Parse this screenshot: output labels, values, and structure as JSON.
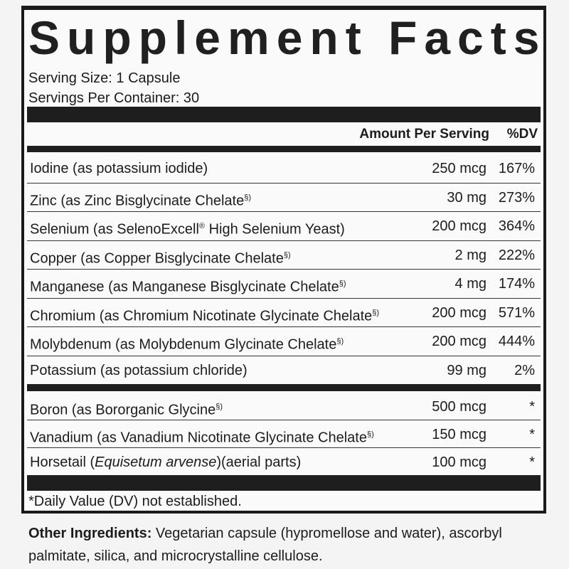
{
  "title": "Supplement Facts",
  "serving_size": "Serving Size: 1 Capsule",
  "servings_per_container": "Servings Per Container: 30",
  "header": {
    "amount": "Amount Per Serving",
    "dv": "%DV"
  },
  "group1": [
    {
      "name": "Iodine (as potassium iodide)",
      "mark": "",
      "amount": "250 mcg",
      "dv": "167%"
    },
    {
      "name": "Zinc (as Zinc Bisglycinate Chelate",
      "mark": "§)",
      "amount": "30 mg",
      "dv": "273%"
    },
    {
      "name": "Selenium (as SelenoExcell",
      "mark": "®",
      "rest": " High Selenium Yeast)",
      "amount": "200 mcg",
      "dv": "364%"
    },
    {
      "name": "Copper (as Copper Bisglycinate Chelate",
      "mark": "§)",
      "amount": "2 mg",
      "dv": "222%"
    },
    {
      "name": "Manganese (as Manganese Bisglycinate Chelate",
      "mark": "§)",
      "amount": "4 mg",
      "dv": "174%"
    },
    {
      "name": "Chromium (as Chromium Nicotinate Glycinate Chelate",
      "mark": "§)",
      "amount": "200 mcg",
      "dv": "571%"
    },
    {
      "name": "Molybdenum (as Molybdenum Glycinate Chelate",
      "mark": "§)",
      "amount": "200 mcg",
      "dv": "444%"
    },
    {
      "name": "Potassium (as potassium chloride)",
      "mark": "",
      "amount": "99 mg",
      "dv": "2%"
    }
  ],
  "group2": [
    {
      "name": "Boron (as Bororganic Glycine",
      "mark": "§)",
      "amount": "500 mcg",
      "dv": "*"
    },
    {
      "name": "Vanadium (as Vanadium Nicotinate Glycinate Chelate",
      "mark": "§)",
      "amount": "150 mcg",
      "dv": "*"
    },
    {
      "name": "Horsetail (",
      "italic": "Equisetum arvense",
      "rest": ")(aerial parts)",
      "amount": "100 mcg",
      "dv": "*"
    }
  ],
  "footnote": "*Daily Value (DV) not established.",
  "other_ingredients": {
    "label": "Other Ingredients:",
    "text": " Vegetarian capsule (hypromellose and water), ascorbyl palmitate, silica, and microcrystalline cellulose."
  }
}
